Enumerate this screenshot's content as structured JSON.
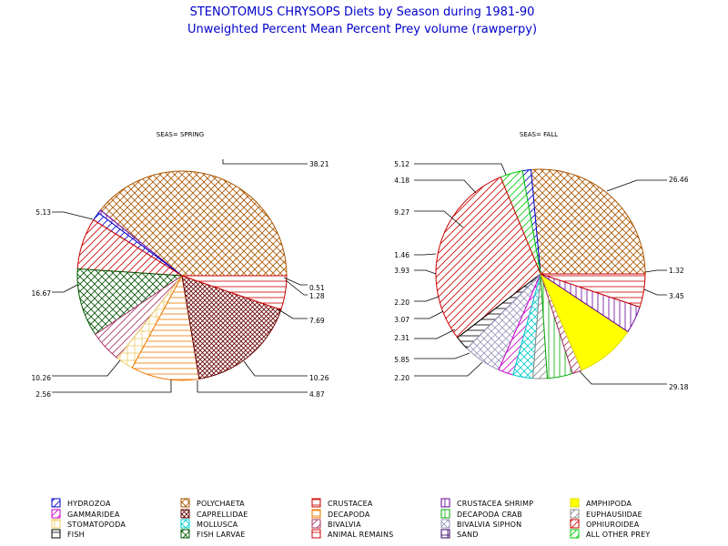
{
  "title": "STENOTOMUS CHRYSOPS Diets by Season during 1981-90",
  "subtitle": "Unweighted Percent Mean Percent Prey  volume (rawperpy)",
  "chart_data": [
    {
      "type": "pie",
      "title": "SEAS= SPRING",
      "labeled_values": {
        "Polychaeta": 38.21,
        "Crustacea Shrimp": 0.51,
        "Hydrozoa": 1.28,
        "Ophiuroidea": 7.69,
        "Fish Larvae": 10.26,
        "Bivalvia": 4.87,
        "Stomatopoda": 2.56,
        "Decapoda": 10.26,
        "Caprellidae": 16.67,
        "Crustacea": 5.13
      }
    },
    {
      "type": "pie",
      "title": "SEAS= FALL",
      "labeled_values": {
        "Polychaeta": 26.46,
        "Hydrozoa": 1.32,
        "All Other Prey": 3.45,
        "Ophiuroidea": 29.18,
        "Fish": 2.2,
        "Bivalvia Siphon": 5.85,
        "Gammaridea": 2.31,
        "Mollusca": 3.07,
        "Euphausiidae": 2.2,
        "Decapoda Crab": 3.93,
        "Bivalvia": 1.46,
        "Amphipoda": 9.27,
        "Crustacea Shrimp": 4.18,
        "Crustacea": 5.12
      }
    }
  ],
  "legend": [
    {
      "label": "HYDROZOA",
      "color": "#0000cc",
      "pattern": "hatch-ne"
    },
    {
      "label": "POLYCHAETA",
      "color": "#aa5500",
      "pattern": "crosshatch-diag"
    },
    {
      "label": "CRUSTACEA",
      "color": "#cc0000",
      "pattern": "hatch-h"
    },
    {
      "label": "CRUSTACEA SHRIMP",
      "color": "#660099",
      "pattern": "hatch-v"
    },
    {
      "label": "AMPHIPODA",
      "color": "#ffff00",
      "pattern": "solid"
    },
    {
      "label": "GAMMARIDEA",
      "color": "#cc00cc",
      "pattern": "hatch-ne"
    },
    {
      "label": "CAPRELLIDAE",
      "color": "#660000",
      "pattern": "crosshatch-dense"
    },
    {
      "label": "DECAPODA",
      "color": "#ee7700",
      "pattern": "hatch-h"
    },
    {
      "label": "DECAPODA CRAB",
      "color": "#00aa00",
      "pattern": "hatch-v"
    },
    {
      "label": "EUPHAUSIIDAE",
      "color": "#888888",
      "pattern": "hatch-ne"
    },
    {
      "label": "STOMATOPODA",
      "color": "#eecc66",
      "pattern": "crosshatch-hv"
    },
    {
      "label": "MOLLUSCA",
      "color": "#00cccc",
      "pattern": "crosshatch-diag"
    },
    {
      "label": "BIVALVIA",
      "color": "#aa3366",
      "pattern": "hatch-ne"
    },
    {
      "label": "BIVALVIA SIPHON",
      "color": "#9999bb",
      "pattern": "crosshatch-diag"
    },
    {
      "label": "OPHIUROIDEA",
      "color": "#cc0000",
      "pattern": "hatch-ne"
    },
    {
      "label": "FISH",
      "color": "#000000",
      "pattern": "hatch-h"
    },
    {
      "label": "FISH LARVAE",
      "color": "#005500",
      "pattern": "crosshatch-diag"
    },
    {
      "label": "ANIMAL REMAINS",
      "color": "#cc0000",
      "pattern": "hatch-h"
    },
    {
      "label": "SAND",
      "color": "#330066",
      "pattern": "crosshatch-hv"
    },
    {
      "label": "ALL OTHER PREY",
      "color": "#00cc00",
      "pattern": "hatch-ne"
    }
  ]
}
